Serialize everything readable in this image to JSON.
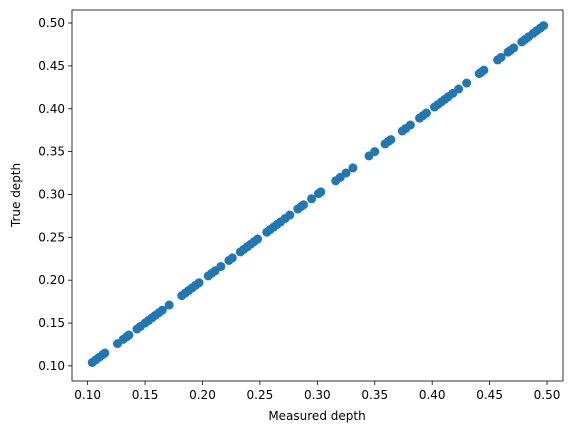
{
  "chart_data": {
    "type": "scatter",
    "x_label": "Measured depth",
    "y_label": "True depth",
    "color": "#1f77b4",
    "x": [
      0.104,
      0.107,
      0.11,
      0.113,
      0.115,
      0.126,
      0.131,
      0.134,
      0.136,
      0.143,
      0.146,
      0.15,
      0.153,
      0.156,
      0.159,
      0.162,
      0.165,
      0.171,
      0.182,
      0.185,
      0.188,
      0.191,
      0.194,
      0.197,
      0.205,
      0.208,
      0.211,
      0.216,
      0.223,
      0.226,
      0.233,
      0.236,
      0.239,
      0.242,
      0.245,
      0.248,
      0.256,
      0.259,
      0.262,
      0.265,
      0.268,
      0.272,
      0.276,
      0.283,
      0.286,
      0.288,
      0.295,
      0.301,
      0.303,
      0.316,
      0.32,
      0.325,
      0.331,
      0.345,
      0.35,
      0.359,
      0.362,
      0.364,
      0.374,
      0.377,
      0.381,
      0.389,
      0.392,
      0.395,
      0.402,
      0.405,
      0.408,
      0.411,
      0.414,
      0.418,
      0.423,
      0.43,
      0.441,
      0.443,
      0.445,
      0.457,
      0.46,
      0.466,
      0.468,
      0.471,
      0.478,
      0.481,
      0.484,
      0.488,
      0.491,
      0.494,
      0.497
    ],
    "y": [
      0.104,
      0.107,
      0.11,
      0.113,
      0.115,
      0.126,
      0.131,
      0.134,
      0.136,
      0.143,
      0.146,
      0.15,
      0.153,
      0.156,
      0.159,
      0.162,
      0.165,
      0.171,
      0.182,
      0.185,
      0.188,
      0.191,
      0.194,
      0.197,
      0.205,
      0.208,
      0.211,
      0.216,
      0.223,
      0.226,
      0.233,
      0.236,
      0.239,
      0.242,
      0.245,
      0.248,
      0.256,
      0.259,
      0.262,
      0.265,
      0.268,
      0.272,
      0.276,
      0.283,
      0.286,
      0.288,
      0.295,
      0.301,
      0.303,
      0.316,
      0.32,
      0.325,
      0.331,
      0.345,
      0.35,
      0.359,
      0.362,
      0.364,
      0.374,
      0.377,
      0.381,
      0.389,
      0.392,
      0.395,
      0.402,
      0.405,
      0.408,
      0.411,
      0.414,
      0.418,
      0.423,
      0.43,
      0.441,
      0.443,
      0.445,
      0.457,
      0.46,
      0.466,
      0.468,
      0.471,
      0.478,
      0.481,
      0.484,
      0.488,
      0.491,
      0.494,
      0.497
    ],
    "xlim": [
      0.0864,
      0.5139
    ],
    "ylim": [
      0.0824,
      0.5152
    ],
    "xticks": [
      {
        "value": 0.1,
        "label": "0.10"
      },
      {
        "value": 0.15,
        "label": "0.15"
      },
      {
        "value": 0.2,
        "label": "0.20"
      },
      {
        "value": 0.25,
        "label": "0.25"
      },
      {
        "value": 0.3,
        "label": "0.30"
      },
      {
        "value": 0.35,
        "label": "0.35"
      },
      {
        "value": 0.4,
        "label": "0.40"
      },
      {
        "value": 0.45,
        "label": "0.45"
      },
      {
        "value": 0.5,
        "label": "0.50"
      }
    ],
    "yticks": [
      {
        "value": 0.1,
        "label": "0.10"
      },
      {
        "value": 0.15,
        "label": "0.15"
      },
      {
        "value": 0.2,
        "label": "0.20"
      },
      {
        "value": 0.25,
        "label": "0.25"
      },
      {
        "value": 0.3,
        "label": "0.30"
      },
      {
        "value": 0.35,
        "label": "0.35"
      },
      {
        "value": 0.4,
        "label": "0.40"
      },
      {
        "value": 0.45,
        "label": "0.45"
      },
      {
        "value": 0.5,
        "label": "0.50"
      }
    ]
  }
}
